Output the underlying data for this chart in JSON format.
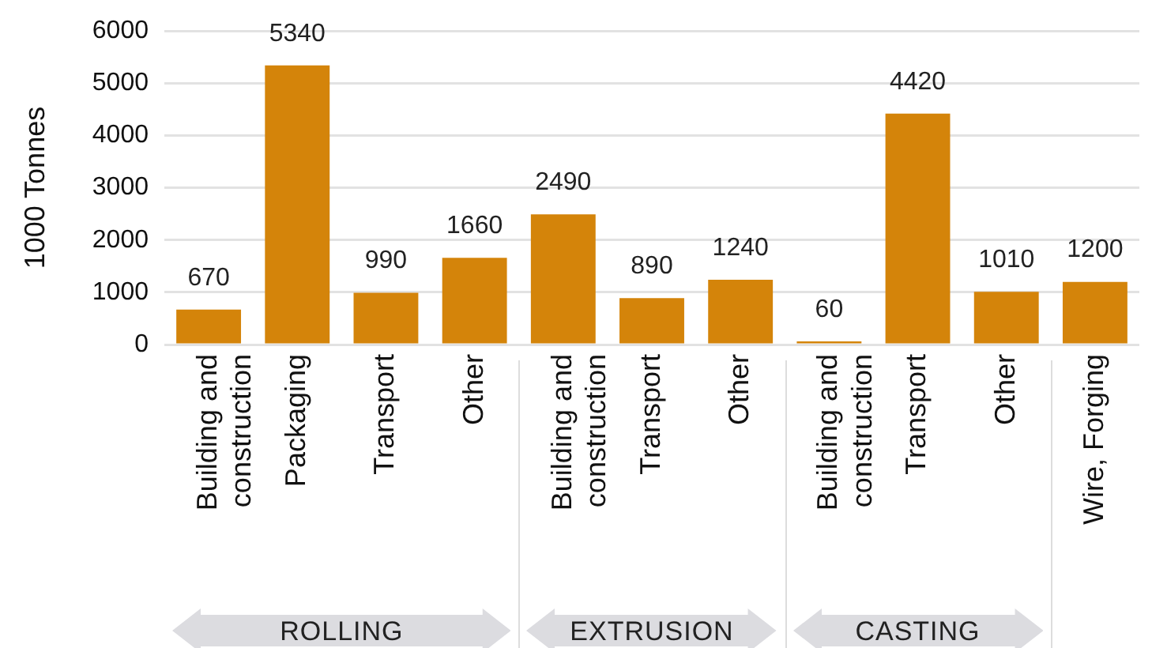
{
  "chart_data": {
    "type": "bar",
    "ylabel": "1000 Tonnes",
    "categories": [
      "Building and construction",
      "Packaging",
      "Transport",
      "Other",
      "Building and construction",
      "Transport",
      "Other",
      "Building and construction",
      "Transport",
      "Other",
      "Wire, Forging"
    ],
    "values": [
      670,
      5340,
      990,
      1660,
      2490,
      890,
      1240,
      60,
      4420,
      1010,
      1200
    ],
    "color": "#d4840a",
    "ylim": [
      0,
      6000
    ],
    "yticks": [
      0,
      1000,
      2000,
      3000,
      4000,
      5000,
      6000
    ],
    "grid": "y",
    "legend": false,
    "data_labels": true,
    "annotations": [
      "ROLLING",
      "EXTRUSION",
      "CASTING"
    ]
  }
}
